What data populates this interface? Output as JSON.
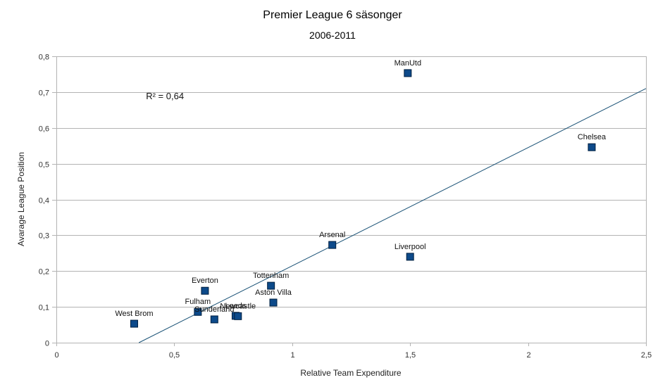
{
  "chart_data": {
    "type": "scatter",
    "title": "Premier League 6 säsonger",
    "subtitle": "2006-2011",
    "xlabel": "Relative Team Expenditure",
    "ylabel": "Avarage League Position",
    "xlim": [
      0,
      2.5
    ],
    "ylim": [
      0,
      0.8
    ],
    "xticks": [
      0,
      0.5,
      1,
      1.5,
      2,
      2.5
    ],
    "xtick_labels": [
      "0",
      "0,5",
      "1",
      "1,5",
      "2",
      "2,5"
    ],
    "yticks": [
      0,
      0.1,
      0.2,
      0.3,
      0.4,
      0.5,
      0.6,
      0.7,
      0.8
    ],
    "ytick_labels": [
      "0",
      "0,1",
      "0,2",
      "0,3",
      "0,4",
      "0,5",
      "0,6",
      "0,7",
      "0,8"
    ],
    "grid": "horizontal",
    "legend": "none",
    "marker_color": "#0d4a8a",
    "trendline_color": "#1a5276",
    "series": [
      {
        "name": "Teams",
        "points": [
          {
            "label": "West Brom",
            "x": 0.33,
            "y": 0.053
          },
          {
            "label": "Fulham",
            "x": 0.6,
            "y": 0.086
          },
          {
            "label": "Everton",
            "x": 0.63,
            "y": 0.145
          },
          {
            "label": "Sunderland",
            "x": 0.67,
            "y": 0.065
          },
          {
            "label": "Leeds",
            "x": 0.76,
            "y": 0.075
          },
          {
            "label": "Newcastle",
            "x": 0.77,
            "y": 0.074
          },
          {
            "label": "Tottenham",
            "x": 0.91,
            "y": 0.159
          },
          {
            "label": "Aston Villa",
            "x": 0.92,
            "y": 0.112
          },
          {
            "label": "Arsenal",
            "x": 1.17,
            "y": 0.273
          },
          {
            "label": "Liverpool",
            "x": 1.5,
            "y": 0.24
          },
          {
            "label": "ManUtd",
            "x": 1.49,
            "y": 0.753
          },
          {
            "label": "Chelsea",
            "x": 2.27,
            "y": 0.546
          }
        ]
      }
    ],
    "trendline": {
      "type": "linear",
      "x0": 0.35,
      "y0": 0,
      "x1": 2.5,
      "y1": 0.71
    },
    "annotations": [
      {
        "text": "R² = 0,64",
        "x": 0.38,
        "y": 0.68
      }
    ]
  }
}
